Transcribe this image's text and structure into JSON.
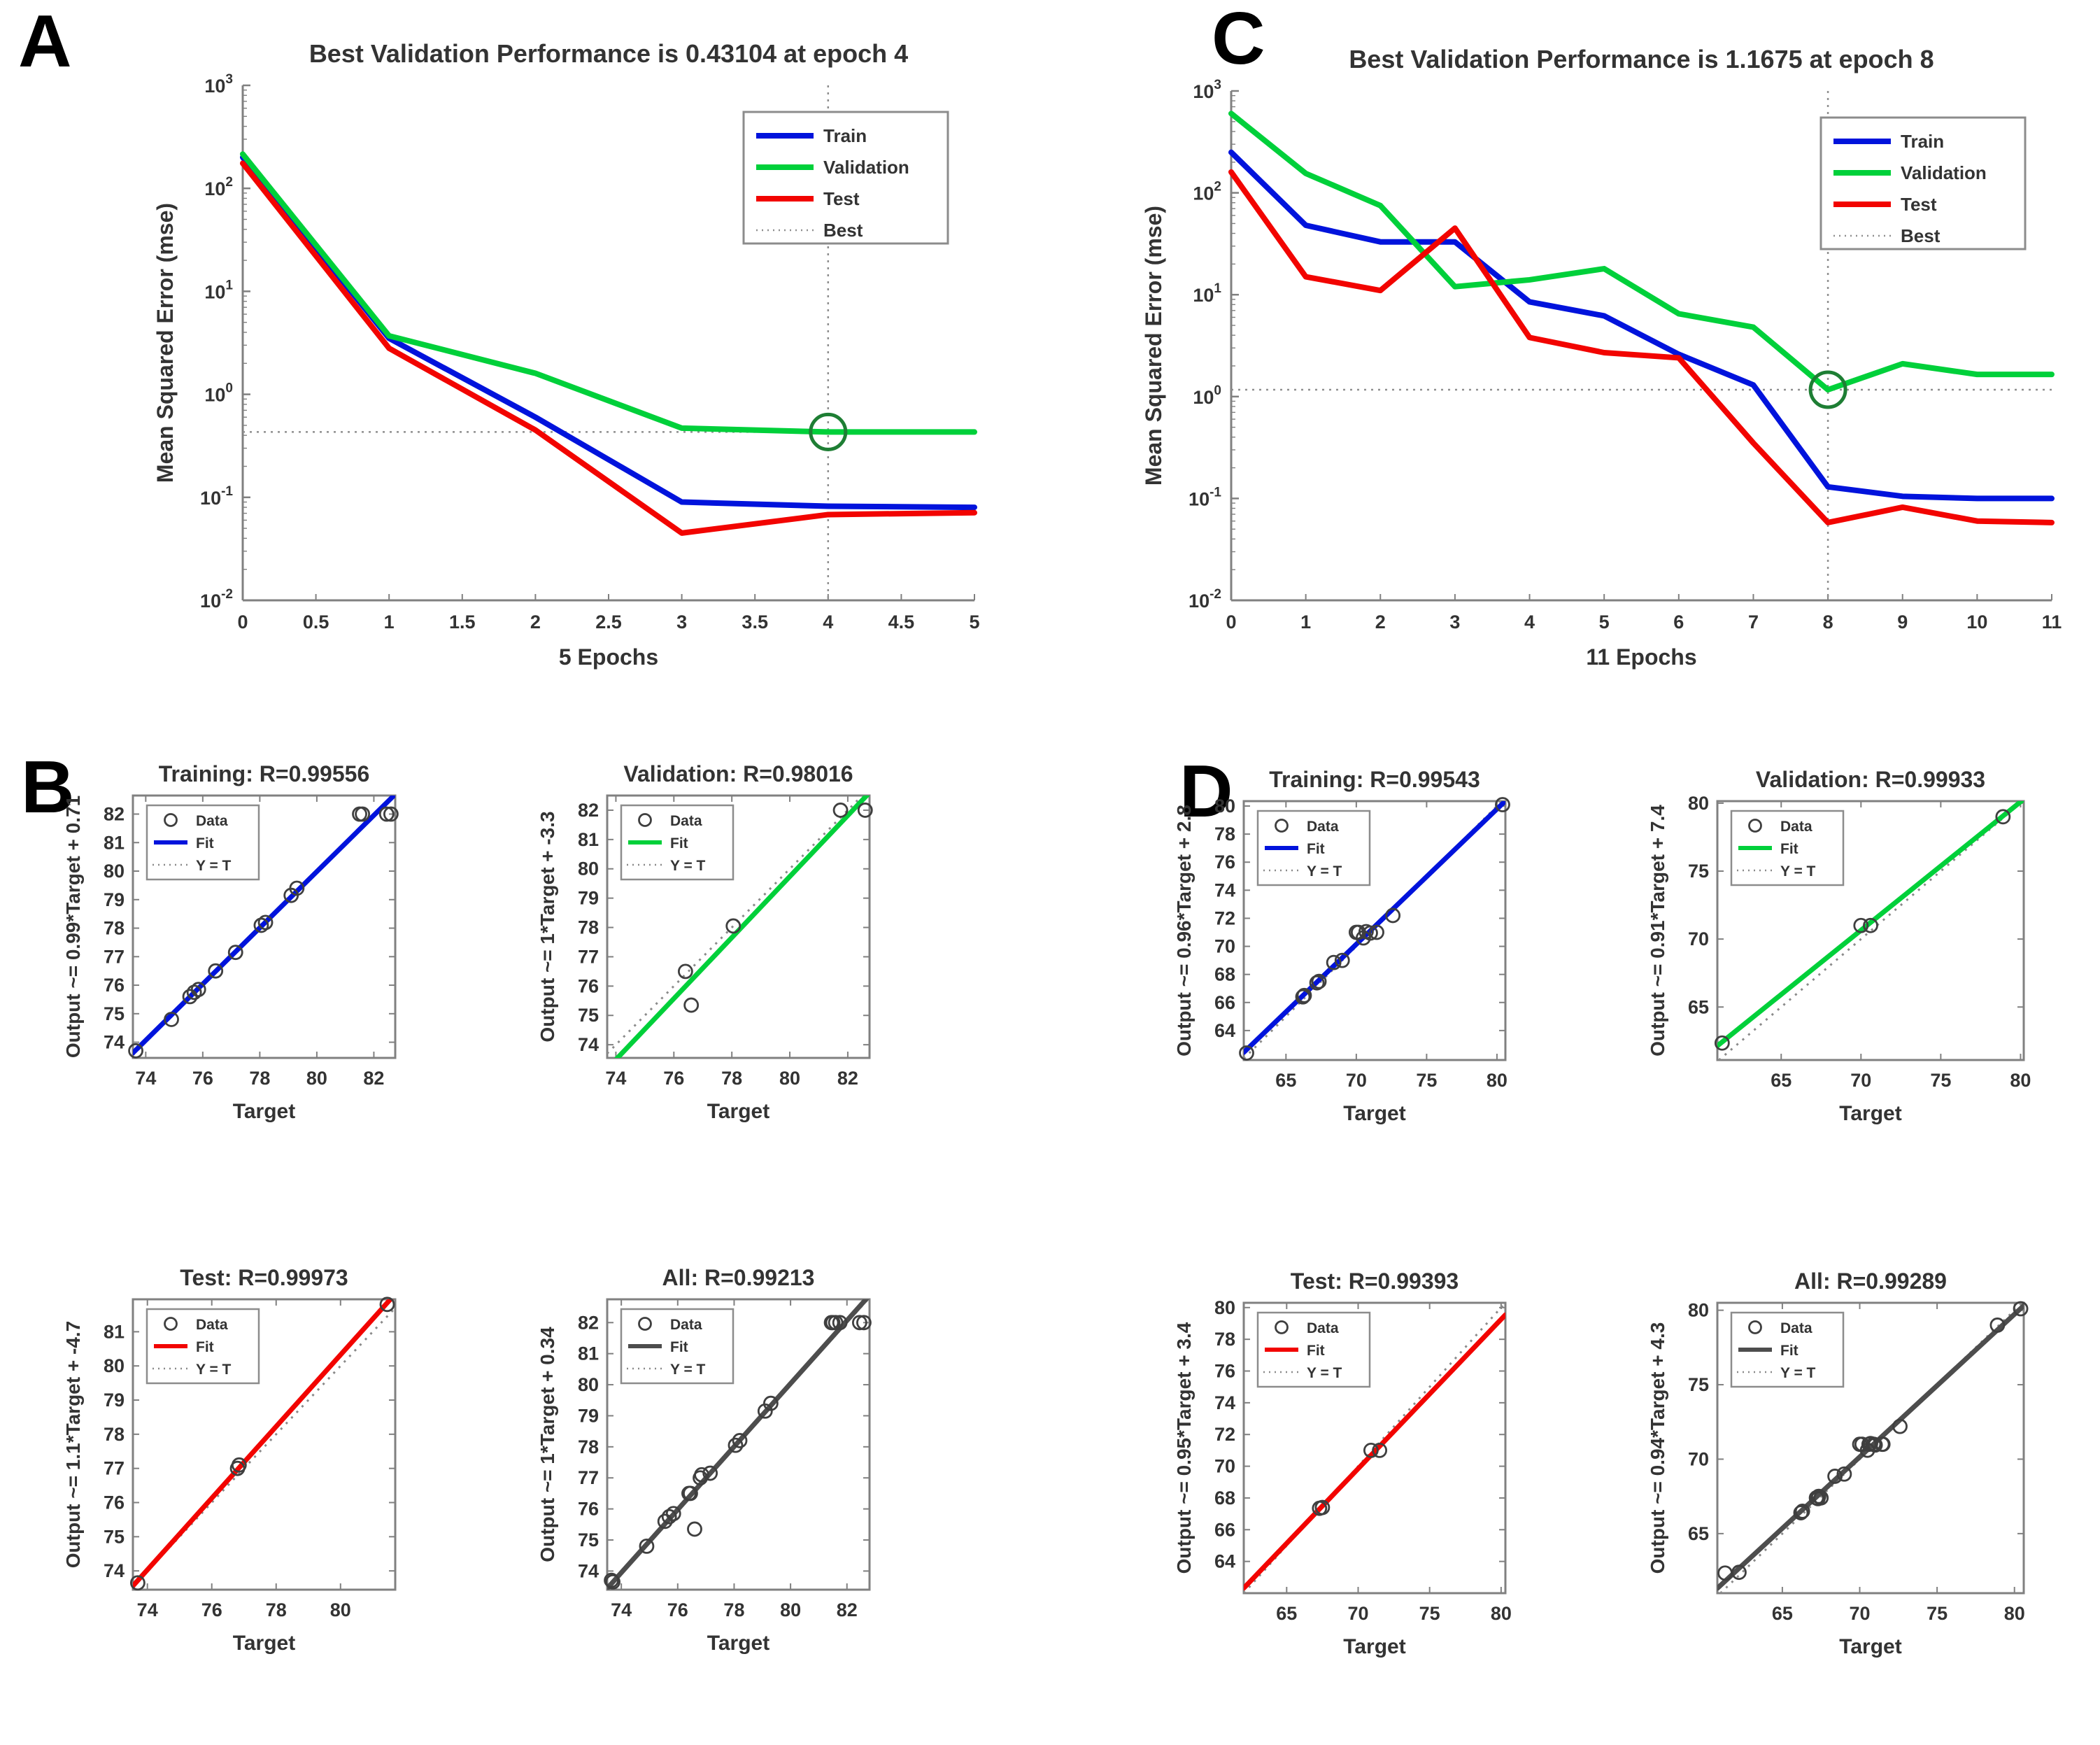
{
  "panel_labels": {
    "a": "A",
    "b": "B",
    "c": "C",
    "d": "D"
  },
  "colors": {
    "train": "#0013dc",
    "validation": "#00d03a",
    "test": "#f20400",
    "all": "#4d4d4d",
    "best_line": "#8f8f8f",
    "best_circle": "#1e7e34",
    "marker": "#3f3f3f",
    "axis": "#808080",
    "text": "#333333",
    "legend_border": "#8c8c8c"
  },
  "chart_data": [
    {
      "id": "perf_a",
      "type": "line",
      "title": "Best Validation Performance is 0.43104 at epoch 4",
      "xlabel": "5 Epochs",
      "ylabel": "Mean Squared Error (mse)",
      "xlim": [
        0,
        5
      ],
      "x_ticks": [
        0,
        0.5,
        1,
        1.5,
        2,
        2.5,
        3,
        3.5,
        4,
        4.5,
        5
      ],
      "y_log_exponents": [
        -2,
        -1,
        0,
        1,
        2,
        3
      ],
      "x": [
        0,
        1,
        2,
        3,
        4,
        5
      ],
      "series": [
        {
          "name": "Train",
          "color": "train",
          "values": [
            200,
            3.5,
            0.6,
            0.09,
            0.082,
            0.08
          ]
        },
        {
          "name": "Validation",
          "color": "validation",
          "values": [
            215,
            3.7,
            1.6,
            0.47,
            0.431,
            0.431
          ]
        },
        {
          "name": "Test",
          "color": "test",
          "values": [
            175,
            2.8,
            0.45,
            0.045,
            0.068,
            0.071
          ]
        }
      ],
      "best": {
        "name": "Best",
        "epoch": 4,
        "value": 0.43104
      },
      "legend_position": "top-right"
    },
    {
      "id": "perf_c",
      "type": "line",
      "title": "Best Validation Performance is 1.1675 at epoch 8",
      "xlabel": "11 Epochs",
      "ylabel": "Mean Squared Error (mse)",
      "xlim": [
        0,
        11
      ],
      "x_ticks": [
        0,
        1,
        2,
        3,
        4,
        5,
        6,
        7,
        8,
        9,
        10,
        11
      ],
      "y_log_exponents": [
        -2,
        -1,
        0,
        1,
        2,
        3
      ],
      "x": [
        0,
        1,
        2,
        3,
        4,
        5,
        6,
        7,
        8,
        9,
        10,
        11
      ],
      "series": [
        {
          "name": "Train",
          "color": "train",
          "values": [
            250,
            48,
            33,
            33,
            8.5,
            6.2,
            2.6,
            1.3,
            0.13,
            0.105,
            0.1,
            0.1
          ]
        },
        {
          "name": "Validation",
          "color": "validation",
          "values": [
            600,
            155,
            75,
            12,
            14,
            18,
            6.5,
            4.8,
            1.1675,
            2.1,
            1.65,
            1.65
          ]
        },
        {
          "name": "Test",
          "color": "test",
          "values": [
            160,
            15,
            11,
            45,
            3.8,
            2.7,
            2.4,
            0.35,
            0.058,
            0.082,
            0.06,
            0.058
          ]
        }
      ],
      "best": {
        "name": "Best",
        "epoch": 8,
        "value": 1.1675
      },
      "legend_position": "top-right"
    },
    {
      "id": "b_training",
      "type": "scatter",
      "title": "Training: R=0.99556",
      "xlabel": "Target",
      "ylabel": "Output ~= 0.99*Target + 0.71",
      "xlim": [
        73.55,
        82.75
      ],
      "ylim": [
        73.45,
        82.65
      ],
      "x_ticks": [
        74,
        76,
        78,
        80,
        82
      ],
      "y_ticks": [
        74,
        75,
        76,
        77,
        78,
        79,
        80,
        81,
        82
      ],
      "fit_color": "train",
      "legend": [
        "Data",
        "Fit",
        "Y = T"
      ],
      "points": [
        [
          73.65,
          73.7
        ],
        [
          74.9,
          74.8
        ],
        [
          75.55,
          75.6
        ],
        [
          75.7,
          75.75
        ],
        [
          75.85,
          75.85
        ],
        [
          76.45,
          76.5
        ],
        [
          77.15,
          77.15
        ],
        [
          78.05,
          78.1
        ],
        [
          78.2,
          78.2
        ],
        [
          79.1,
          79.15
        ],
        [
          79.3,
          79.4
        ],
        [
          81.5,
          82.0
        ],
        [
          81.6,
          82.0
        ],
        [
          82.45,
          82.0
        ],
        [
          82.6,
          82.0
        ]
      ]
    },
    {
      "id": "b_validation",
      "type": "scatter",
      "title": "Validation: R=0.98016",
      "xlabel": "Target",
      "ylabel": "Output ~= 1*Target + -3.3",
      "xlim": [
        73.7,
        82.75
      ],
      "ylim": [
        73.55,
        82.5
      ],
      "x_ticks": [
        74,
        76,
        78,
        80,
        82
      ],
      "y_ticks": [
        74,
        75,
        76,
        77,
        78,
        79,
        80,
        81,
        82
      ],
      "fit_color": "validation",
      "legend": [
        "Data",
        "Fit",
        "Y = T"
      ],
      "points": [
        [
          76.4,
          76.5
        ],
        [
          76.6,
          75.35
        ],
        [
          78.05,
          78.05
        ],
        [
          81.75,
          82.0
        ],
        [
          82.6,
          82.0
        ]
      ]
    },
    {
      "id": "b_test",
      "type": "scatter",
      "title": "Test: R=0.99973",
      "xlabel": "Target",
      "ylabel": "Output ~= 1.1*Target + -4.7",
      "xlim": [
        73.55,
        81.7
      ],
      "ylim": [
        73.45,
        81.95
      ],
      "x_ticks": [
        74,
        76,
        78,
        80
      ],
      "y_ticks": [
        74,
        75,
        76,
        77,
        78,
        79,
        80,
        81
      ],
      "fit_color": "test",
      "legend": [
        "Data",
        "Fit",
        "Y = T"
      ],
      "points": [
        [
          73.7,
          73.65
        ],
        [
          76.8,
          77.0
        ],
        [
          76.85,
          77.1
        ],
        [
          81.45,
          81.8
        ]
      ]
    },
    {
      "id": "b_all",
      "type": "scatter",
      "title": "All: R=0.99213",
      "xlabel": "Target",
      "ylabel": "Output ~= 1*Target + 0.34",
      "xlim": [
        73.5,
        82.8
      ],
      "ylim": [
        73.4,
        82.75
      ],
      "x_ticks": [
        74,
        76,
        78,
        80,
        82
      ],
      "y_ticks": [
        74,
        75,
        76,
        77,
        78,
        79,
        80,
        81,
        82
      ],
      "fit_color": "all",
      "legend": [
        "Data",
        "Fit",
        "Y = T"
      ],
      "points": [
        [
          73.65,
          73.7
        ],
        [
          73.7,
          73.65
        ],
        [
          74.9,
          74.8
        ],
        [
          75.55,
          75.6
        ],
        [
          75.7,
          75.75
        ],
        [
          75.85,
          75.85
        ],
        [
          76.4,
          76.5
        ],
        [
          76.45,
          76.5
        ],
        [
          76.6,
          75.35
        ],
        [
          76.8,
          77.0
        ],
        [
          76.85,
          77.1
        ],
        [
          77.15,
          77.15
        ],
        [
          78.05,
          78.05
        ],
        [
          78.2,
          78.2
        ],
        [
          79.1,
          79.15
        ],
        [
          79.3,
          79.4
        ],
        [
          81.45,
          82.0
        ],
        [
          81.5,
          82.0
        ],
        [
          81.6,
          82.0
        ],
        [
          81.75,
          82.0
        ],
        [
          82.45,
          82.0
        ],
        [
          82.6,
          82.0
        ]
      ]
    },
    {
      "id": "d_training",
      "type": "scatter",
      "title": "Training: R=0.99543",
      "xlabel": "Target",
      "ylabel": "Output ~= 0.96*Target + 2.8",
      "xlim": [
        62.0,
        80.6
      ],
      "ylim": [
        61.9,
        80.35
      ],
      "x_ticks": [
        65,
        70,
        75,
        80
      ],
      "y_ticks": [
        64,
        66,
        68,
        70,
        72,
        74,
        76,
        78,
        80
      ],
      "fit_color": "train",
      "legend": [
        "Data",
        "Fit",
        "Y = T"
      ],
      "points": [
        [
          62.2,
          62.4
        ],
        [
          66.2,
          66.4
        ],
        [
          66.3,
          66.5
        ],
        [
          67.2,
          67.4
        ],
        [
          67.35,
          67.5
        ],
        [
          68.4,
          68.85
        ],
        [
          69.0,
          69.0
        ],
        [
          70.0,
          71.0
        ],
        [
          70.15,
          71.0
        ],
        [
          70.5,
          70.6
        ],
        [
          70.7,
          71.05
        ],
        [
          71.0,
          70.95
        ],
        [
          71.45,
          71.0
        ],
        [
          72.6,
          72.2
        ],
        [
          80.4,
          80.1
        ]
      ]
    },
    {
      "id": "d_validation",
      "type": "scatter",
      "title": "Validation: R=0.99933",
      "xlabel": "Target",
      "ylabel": "Output ~= 0.91*Target + 7.4",
      "xlim": [
        61.0,
        80.2
      ],
      "ylim": [
        61.1,
        80.15
      ],
      "x_ticks": [
        65,
        70,
        75,
        80
      ],
      "y_ticks": [
        65,
        70,
        75,
        80
      ],
      "fit_color": "validation",
      "legend": [
        "Data",
        "Fit",
        "Y = T"
      ],
      "points": [
        [
          61.3,
          62.35
        ],
        [
          70.0,
          71.0
        ],
        [
          70.6,
          71.0
        ],
        [
          78.9,
          79.0
        ]
      ]
    },
    {
      "id": "d_test",
      "type": "scatter",
      "title": "Test: R=0.99393",
      "xlabel": "Target",
      "ylabel": "Output ~= 0.95*Target + 3.4",
      "xlim": [
        62.0,
        80.3
      ],
      "ylim": [
        62.0,
        80.3
      ],
      "x_ticks": [
        65,
        70,
        75,
        80
      ],
      "y_ticks": [
        64,
        66,
        68,
        70,
        72,
        74,
        76,
        78,
        80
      ],
      "fit_color": "test",
      "legend": [
        "Data",
        "Fit",
        "Y = T"
      ],
      "points": [
        [
          67.3,
          67.35
        ],
        [
          67.5,
          67.4
        ],
        [
          70.9,
          71.0
        ],
        [
          71.5,
          71.0
        ]
      ]
    },
    {
      "id": "d_all",
      "type": "scatter",
      "title": "All: R=0.99289",
      "xlabel": "Target",
      "ylabel": "Output ~= 0.94*Target + 4.3",
      "xlim": [
        60.8,
        80.6
      ],
      "ylim": [
        61.0,
        80.5
      ],
      "x_ticks": [
        65,
        70,
        75,
        80
      ],
      "y_ticks": [
        65,
        70,
        75,
        80
      ],
      "fit_color": "all",
      "legend": [
        "Data",
        "Fit",
        "Y = T"
      ],
      "points": [
        [
          61.3,
          62.35
        ],
        [
          62.2,
          62.4
        ],
        [
          66.2,
          66.4
        ],
        [
          66.3,
          66.5
        ],
        [
          67.2,
          67.4
        ],
        [
          67.3,
          67.35
        ],
        [
          67.35,
          67.5
        ],
        [
          67.5,
          67.4
        ],
        [
          68.4,
          68.85
        ],
        [
          69.0,
          69.0
        ],
        [
          70.0,
          71.0
        ],
        [
          70.15,
          71.0
        ],
        [
          70.5,
          70.6
        ],
        [
          70.6,
          71.0
        ],
        [
          70.7,
          71.05
        ],
        [
          70.9,
          71.0
        ],
        [
          71.0,
          70.95
        ],
        [
          71.45,
          71.0
        ],
        [
          71.5,
          71.0
        ],
        [
          72.6,
          72.2
        ],
        [
          78.9,
          79.0
        ],
        [
          80.4,
          80.1
        ]
      ]
    }
  ]
}
